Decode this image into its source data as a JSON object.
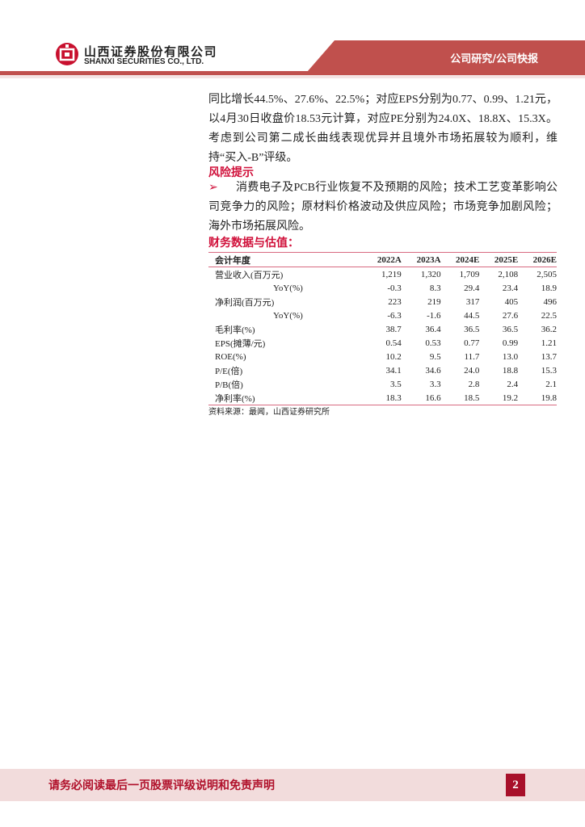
{
  "header": {
    "company_cn": "山西证券股份有限公司",
    "company_en": "SHANXI SECURITIES CO., LTD.",
    "section": "公司研究/公司快报",
    "brand_color": "#c0504d"
  },
  "body": {
    "paragraph": "同比增长44.5%、27.6%、22.5%；对应EPS分别为0.77、0.99、1.21元，以4月30日收盘价18.53元计算，对应PE分别为24.0X、18.8X、15.3X。考虑到公司第二成长曲线表现优异并且境外市场拓展较为顺利，维持“买入-B”评级。",
    "risk_title": "风险提示",
    "risk_text": "消费电子及PCB行业恢复不及预期的风险；技术工艺变革影响公司竞争力的风险；原材料价格波动及供应风险；市场竞争加剧风险；海外市场拓展风险。",
    "table_title": "财务数据与估值："
  },
  "table": {
    "headers": [
      "会计年度",
      "2022A",
      "2023A",
      "2024E",
      "2025E",
      "2026E"
    ],
    "rows": [
      [
        "营业收入(百万元)",
        "1,219",
        "1,320",
        "1,709",
        "2,108",
        "2,505"
      ],
      [
        "YoY(%)",
        "-0.3",
        "8.3",
        "29.4",
        "23.4",
        "18.9"
      ],
      [
        "净利润(百万元)",
        "223",
        "219",
        "317",
        "405",
        "496"
      ],
      [
        "YoY(%)",
        "-6.3",
        "-1.6",
        "44.5",
        "27.6",
        "22.5"
      ],
      [
        "毛利率(%)",
        "38.7",
        "36.4",
        "36.5",
        "36.5",
        "36.2"
      ],
      [
        "EPS(摊薄/元)",
        "0.54",
        "0.53",
        "0.77",
        "0.99",
        "1.21"
      ],
      [
        "ROE(%)",
        "10.2",
        "9.5",
        "11.7",
        "13.0",
        "13.7"
      ],
      [
        "P/E(倍)",
        "34.1",
        "34.6",
        "24.0",
        "18.8",
        "15.3"
      ],
      [
        "P/B(倍)",
        "3.5",
        "3.3",
        "2.8",
        "2.4",
        "2.1"
      ],
      [
        "净利率(%)",
        "18.3",
        "16.6",
        "18.5",
        "19.2",
        "19.8"
      ]
    ],
    "source": "资料来源：最闻，山西证券研究所"
  },
  "footer": {
    "disclaimer": "请务必阅读最后一页股票评级说明和免责声明",
    "page": "2"
  }
}
